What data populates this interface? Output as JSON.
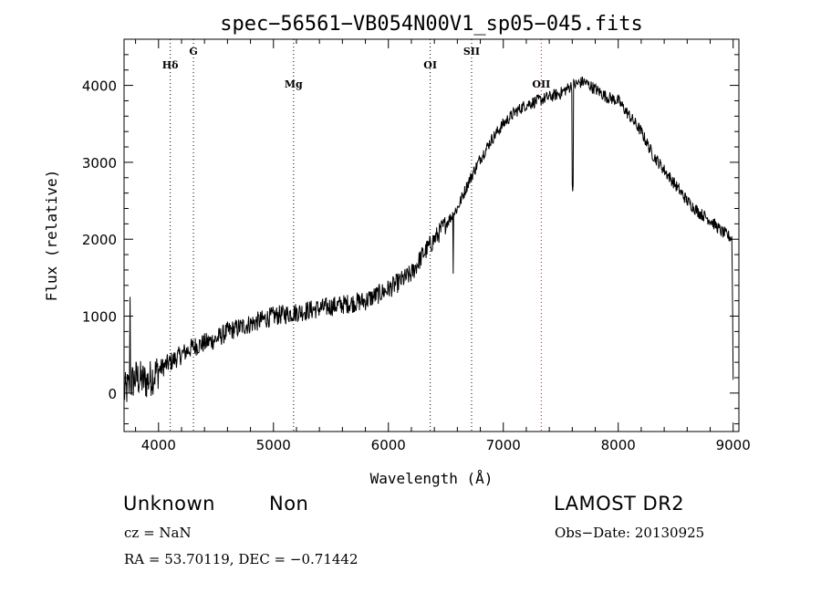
{
  "chart_data": {
    "type": "line",
    "title": "spec−56561−VB054N00V1_sp05−045.fits",
    "xlabel": "Wavelength (Å)",
    "ylabel": "Flux (relative)",
    "xlim": [
      3700,
      9050
    ],
    "ylim": [
      -500,
      4600
    ],
    "x_ticks": [
      4000,
      5000,
      6000,
      7000,
      8000,
      9000
    ],
    "x_tick_labels": [
      "4000",
      "5000",
      "6000",
      "7000",
      "8000",
      "9000"
    ],
    "y_ticks": [
      0,
      1000,
      2000,
      3000,
      4000
    ],
    "y_tick_labels": [
      "0",
      "1000",
      "2000",
      "3000",
      "4000"
    ],
    "grid": false,
    "spectrum_anchors": {
      "x": [
        3700,
        3800,
        3900,
        4000,
        4100,
        4200,
        4300,
        4400,
        4500,
        4600,
        4800,
        5000,
        5200,
        5400,
        5600,
        5800,
        6000,
        6200,
        6300,
        6400,
        6500,
        6600,
        6700,
        6800,
        6900,
        7000,
        7100,
        7200,
        7300,
        7400,
        7500,
        7600,
        7700,
        7800,
        7900,
        8000,
        8100,
        8200,
        8300,
        8400,
        8500,
        8600,
        8700,
        8800,
        8900,
        9000
      ],
      "y": [
        0,
        200,
        150,
        300,
        400,
        500,
        600,
        650,
        700,
        800,
        900,
        1000,
        1050,
        1100,
        1150,
        1200,
        1350,
        1550,
        1800,
        2000,
        2200,
        2400,
        2750,
        3050,
        3300,
        3500,
        3650,
        3750,
        3800,
        3850,
        3900,
        4000,
        4050,
        3950,
        3850,
        3800,
        3600,
        3400,
        3100,
        2900,
        2700,
        2500,
        2350,
        2250,
        2100,
        2000
      ]
    },
    "spectral_lines": [
      {
        "label": "Hδ",
        "wavelength": 4102,
        "color": "#000000"
      },
      {
        "label": "G",
        "wavelength": 4304,
        "color": "#000000"
      },
      {
        "label": "Mg",
        "wavelength": 5175,
        "color": "#000000"
      },
      {
        "label": "OI",
        "wavelength": 6364,
        "color": "#000000"
      },
      {
        "label": "SII",
        "wavelength": 6724,
        "color": "#000000"
      },
      {
        "label": "OII",
        "wavelength": 7330,
        "color": "#cc0000"
      }
    ]
  },
  "footer": {
    "class_label": "Unknown",
    "subclass_label": "Non",
    "survey": "LAMOST DR2",
    "redshift": "cz = NaN",
    "obs_date": "Obs−Date: 20130925",
    "coords": "RA =  53.70119, DEC =  −0.71442"
  }
}
